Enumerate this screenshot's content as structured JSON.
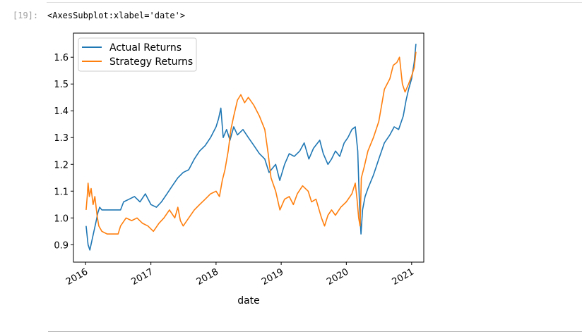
{
  "cell": {
    "prompt": "[19]:",
    "output_repr": "<AxesSubplot:xlabel='date'>"
  },
  "chart_data": {
    "type": "line",
    "title": "",
    "xlabel": "date",
    "ylabel": "",
    "xlim": [
      "2015-10-25",
      "2021-03-10"
    ],
    "ylim": [
      0.835,
      1.69
    ],
    "grid": false,
    "legend_position": "top-left",
    "x_ticks": [
      {
        "date": "2016-01-01",
        "label": "2016"
      },
      {
        "date": "2017-01-01",
        "label": "2017"
      },
      {
        "date": "2018-01-01",
        "label": "2018"
      },
      {
        "date": "2019-01-01",
        "label": "2019"
      },
      {
        "date": "2020-01-01",
        "label": "2020"
      },
      {
        "date": "2021-01-01",
        "label": "2021"
      }
    ],
    "y_ticks": [
      {
        "value": 0.9,
        "label": "0.9"
      },
      {
        "value": 1.0,
        "label": "1.0"
      },
      {
        "value": 1.1,
        "label": "1.1"
      },
      {
        "value": 1.2,
        "label": "1.2"
      },
      {
        "value": 1.3,
        "label": "1.3"
      },
      {
        "value": 1.4,
        "label": "1.4"
      },
      {
        "value": 1.5,
        "label": "1.5"
      },
      {
        "value": 1.6,
        "label": "1.6"
      }
    ],
    "series": [
      {
        "name": "Actual Returns",
        "color": "#1f77b4",
        "points": [
          [
            "2016-01-04",
            0.97
          ],
          [
            "2016-01-15",
            0.9
          ],
          [
            "2016-01-25",
            0.88
          ],
          [
            "2016-02-10",
            0.93
          ],
          [
            "2016-02-20",
            0.96
          ],
          [
            "2016-03-01",
            0.99
          ],
          [
            "2016-03-10",
            1.02
          ],
          [
            "2016-03-20",
            1.04
          ],
          [
            "2016-04-01",
            1.03
          ],
          [
            "2016-07-15",
            1.03
          ],
          [
            "2016-08-01",
            1.06
          ],
          [
            "2016-09-01",
            1.07
          ],
          [
            "2016-10-01",
            1.08
          ],
          [
            "2016-11-01",
            1.06
          ],
          [
            "2016-12-01",
            1.09
          ],
          [
            "2017-01-01",
            1.05
          ],
          [
            "2017-02-01",
            1.04
          ],
          [
            "2017-03-01",
            1.06
          ],
          [
            "2017-04-01",
            1.09
          ],
          [
            "2017-05-01",
            1.12
          ],
          [
            "2017-06-01",
            1.15
          ],
          [
            "2017-07-01",
            1.17
          ],
          [
            "2017-08-01",
            1.18
          ],
          [
            "2017-09-01",
            1.22
          ],
          [
            "2017-10-01",
            1.25
          ],
          [
            "2017-11-01",
            1.27
          ],
          [
            "2017-12-01",
            1.3
          ],
          [
            "2018-01-01",
            1.34
          ],
          [
            "2018-01-15",
            1.37
          ],
          [
            "2018-01-28",
            1.41
          ],
          [
            "2018-02-10",
            1.3
          ],
          [
            "2018-03-01",
            1.33
          ],
          [
            "2018-03-20",
            1.29
          ],
          [
            "2018-04-10",
            1.34
          ],
          [
            "2018-05-01",
            1.31
          ],
          [
            "2018-06-01",
            1.33
          ],
          [
            "2018-07-01",
            1.3
          ],
          [
            "2018-08-01",
            1.27
          ],
          [
            "2018-09-01",
            1.24
          ],
          [
            "2018-10-01",
            1.22
          ],
          [
            "2018-10-25",
            1.17
          ],
          [
            "2018-12-01",
            1.2
          ],
          [
            "2018-12-24",
            1.14
          ],
          [
            "2019-01-20",
            1.2
          ],
          [
            "2019-02-15",
            1.24
          ],
          [
            "2019-03-15",
            1.23
          ],
          [
            "2019-04-15",
            1.25
          ],
          [
            "2019-05-10",
            1.28
          ],
          [
            "2019-06-05",
            1.22
          ],
          [
            "2019-07-01",
            1.26
          ],
          [
            "2019-08-05",
            1.29
          ],
          [
            "2019-08-25",
            1.24
          ],
          [
            "2019-09-20",
            1.2
          ],
          [
            "2019-10-10",
            1.22
          ],
          [
            "2019-11-01",
            1.25
          ],
          [
            "2019-11-25",
            1.23
          ],
          [
            "2019-12-20",
            1.28
          ],
          [
            "2020-01-10",
            1.3
          ],
          [
            "2020-02-01",
            1.33
          ],
          [
            "2020-02-20",
            1.34
          ],
          [
            "2020-03-05",
            1.25
          ],
          [
            "2020-03-12",
            1.1
          ],
          [
            "2020-03-18",
            1.0
          ],
          [
            "2020-03-23",
            0.94
          ],
          [
            "2020-04-01",
            1.03
          ],
          [
            "2020-04-15",
            1.08
          ],
          [
            "2020-05-01",
            1.11
          ],
          [
            "2020-06-01",
            1.16
          ],
          [
            "2020-07-01",
            1.22
          ],
          [
            "2020-08-01",
            1.28
          ],
          [
            "2020-09-01",
            1.31
          ],
          [
            "2020-09-25",
            1.34
          ],
          [
            "2020-10-20",
            1.33
          ],
          [
            "2020-11-15",
            1.38
          ],
          [
            "2020-12-01",
            1.44
          ],
          [
            "2020-12-15",
            1.48
          ],
          [
            "2021-01-01",
            1.52
          ],
          [
            "2021-01-15",
            1.58
          ],
          [
            "2021-01-25",
            1.65
          ]
        ]
      },
      {
        "name": "Strategy Returns",
        "color": "#ff7f0e",
        "points": [
          [
            "2016-01-04",
            1.03
          ],
          [
            "2016-01-10",
            1.08
          ],
          [
            "2016-01-15",
            1.13
          ],
          [
            "2016-01-22",
            1.08
          ],
          [
            "2016-02-01",
            1.11
          ],
          [
            "2016-02-12",
            1.05
          ],
          [
            "2016-02-22",
            1.08
          ],
          [
            "2016-03-05",
            1.01
          ],
          [
            "2016-03-15",
            0.97
          ],
          [
            "2016-04-01",
            0.95
          ],
          [
            "2016-05-01",
            0.94
          ],
          [
            "2016-07-01",
            0.94
          ],
          [
            "2016-07-15",
            0.97
          ],
          [
            "2016-08-15",
            1.0
          ],
          [
            "2016-09-15",
            0.99
          ],
          [
            "2016-10-15",
            1.0
          ],
          [
            "2016-11-15",
            0.98
          ],
          [
            "2016-12-15",
            0.97
          ],
          [
            "2017-01-15",
            0.95
          ],
          [
            "2017-02-15",
            0.98
          ],
          [
            "2017-03-15",
            1.0
          ],
          [
            "2017-04-15",
            1.03
          ],
          [
            "2017-05-15",
            1.0
          ],
          [
            "2017-06-01",
            1.04
          ],
          [
            "2017-06-15",
            0.99
          ],
          [
            "2017-07-01",
            0.97
          ],
          [
            "2017-08-01",
            1.0
          ],
          [
            "2017-09-01",
            1.03
          ],
          [
            "2017-10-01",
            1.05
          ],
          [
            "2017-11-01",
            1.07
          ],
          [
            "2017-12-01",
            1.09
          ],
          [
            "2018-01-01",
            1.1
          ],
          [
            "2018-01-20",
            1.08
          ],
          [
            "2018-02-05",
            1.14
          ],
          [
            "2018-02-20",
            1.18
          ],
          [
            "2018-03-10",
            1.25
          ],
          [
            "2018-03-25",
            1.33
          ],
          [
            "2018-04-10",
            1.38
          ],
          [
            "2018-05-01",
            1.44
          ],
          [
            "2018-05-20",
            1.46
          ],
          [
            "2018-06-10",
            1.43
          ],
          [
            "2018-07-01",
            1.45
          ],
          [
            "2018-08-01",
            1.42
          ],
          [
            "2018-09-01",
            1.38
          ],
          [
            "2018-10-01",
            1.33
          ],
          [
            "2018-10-20",
            1.24
          ],
          [
            "2018-11-05",
            1.15
          ],
          [
            "2018-12-01",
            1.1
          ],
          [
            "2018-12-25",
            1.03
          ],
          [
            "2019-01-20",
            1.07
          ],
          [
            "2019-02-15",
            1.08
          ],
          [
            "2019-03-10",
            1.05
          ],
          [
            "2019-04-01",
            1.09
          ],
          [
            "2019-05-01",
            1.12
          ],
          [
            "2019-06-01",
            1.1
          ],
          [
            "2019-06-20",
            1.06
          ],
          [
            "2019-07-15",
            1.07
          ],
          [
            "2019-08-15",
            1.0
          ],
          [
            "2019-09-01",
            0.97
          ],
          [
            "2019-09-20",
            1.01
          ],
          [
            "2019-10-10",
            1.03
          ],
          [
            "2019-11-01",
            1.01
          ],
          [
            "2019-12-01",
            1.04
          ],
          [
            "2020-01-01",
            1.06
          ],
          [
            "2020-02-01",
            1.09
          ],
          [
            "2020-02-20",
            1.13
          ],
          [
            "2020-03-01",
            1.07
          ],
          [
            "2020-03-10",
            1.0
          ],
          [
            "2020-03-18",
            0.97
          ],
          [
            "2020-03-25",
            1.15
          ],
          [
            "2020-04-10",
            1.19
          ],
          [
            "2020-05-01",
            1.25
          ],
          [
            "2020-06-01",
            1.3
          ],
          [
            "2020-07-01",
            1.36
          ],
          [
            "2020-08-01",
            1.48
          ],
          [
            "2020-09-01",
            1.52
          ],
          [
            "2020-09-20",
            1.57
          ],
          [
            "2020-10-10",
            1.58
          ],
          [
            "2020-10-25",
            1.6
          ],
          [
            "2020-11-10",
            1.5
          ],
          [
            "2020-11-25",
            1.47
          ],
          [
            "2020-12-15",
            1.5
          ],
          [
            "2021-01-01",
            1.53
          ],
          [
            "2021-01-15",
            1.56
          ],
          [
            "2021-01-25",
            1.62
          ]
        ]
      }
    ]
  }
}
